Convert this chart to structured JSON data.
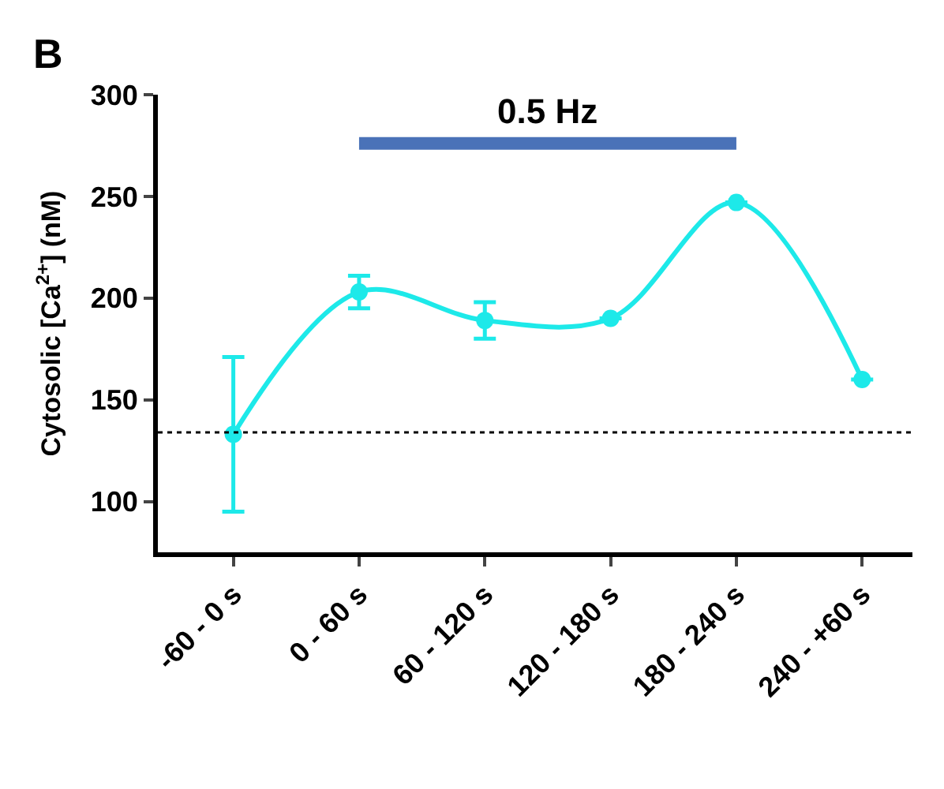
{
  "chart_data": {
    "type": "line",
    "annotations": [
      "B"
    ],
    "ylabel": "Cytosolic [Ca$^{2+}$] (nM)",
    "categories": [
      "-60 - 0 s",
      "0 - 60 s",
      "60 - 120 s",
      "120 - 180 s",
      "180 - 240 s",
      "240 - +60 s"
    ],
    "series": [
      {
        "color": "#1de9e9",
        "values": [
          133,
          203,
          189,
          190,
          247,
          160
        ],
        "errors": [
          [
            95,
            171
          ],
          8,
          9,
          null,
          null,
          null
        ]
      },
      {
        "name": "0.5 Hz",
        "color": "#4a72b8",
        "marker": "none",
        "values": [
          null,
          276,
          276,
          276,
          276,
          null
        ]
      }
    ],
    "ylim": [
      75,
      300
    ],
    "yticks": [
      100,
      150,
      200,
      250,
      300
    ],
    "ref_lines": [
      {
        "axis": "y",
        "value": 134,
        "color": "#000000",
        "line_style": "dotted"
      }
    ],
    "legend": false,
    "marker": "circle",
    "line_style": "solid"
  }
}
